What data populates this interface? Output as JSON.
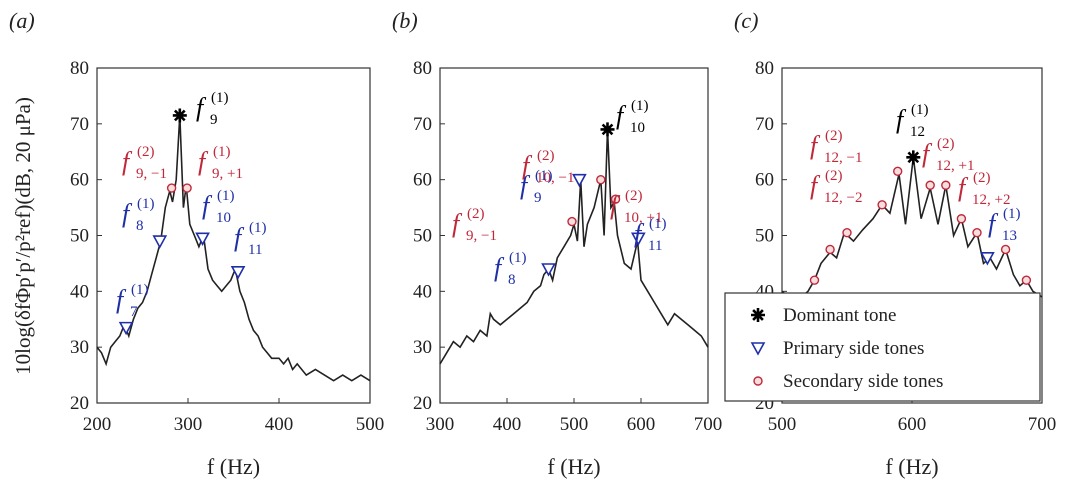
{
  "y_label": "10log(δfΦp′p′/p²ref)(dB, 20 μPa)",
  "chart_data": [
    {
      "type": "line",
      "panel": "(a)",
      "xlabel": "f (Hz)",
      "xlim": [
        200,
        500
      ],
      "xticks": [
        200,
        300,
        400,
        500
      ],
      "ylim": [
        20,
        80
      ],
      "yticks": [
        20,
        30,
        40,
        50,
        60,
        70,
        80
      ],
      "spectrum": {
        "color": "#222222",
        "x": [
          200,
          205,
          210,
          215,
          220,
          225,
          230,
          235,
          240,
          245,
          250,
          255,
          260,
          265,
          270,
          275,
          280,
          283,
          287,
          291,
          295,
          298,
          302,
          307,
          312,
          317,
          322,
          327,
          332,
          337,
          342,
          347,
          352,
          357,
          362,
          367,
          372,
          377,
          382,
          387,
          392,
          400,
          405,
          410,
          415,
          420,
          430,
          440,
          450,
          460,
          470,
          480,
          490,
          500
        ],
        "y": [
          30,
          29,
          27,
          30,
          31,
          32,
          34,
          32,
          35,
          37,
          38,
          40,
          43,
          46,
          49,
          55,
          58,
          56,
          60,
          71.5,
          55,
          59,
          52,
          50,
          48,
          50,
          44,
          42,
          41,
          40,
          41,
          42,
          44,
          40,
          38,
          35,
          33,
          32,
          30,
          29,
          28,
          28,
          27,
          28,
          26,
          27,
          25,
          26,
          25,
          24,
          25,
          24,
          25,
          24
        ]
      },
      "markers": [
        {
          "marker": "star",
          "color": "#000000",
          "x": [
            291
          ],
          "y": [
            71.5
          ]
        },
        {
          "marker": "triangle",
          "color": "#1f2fa8",
          "x": [
            232,
            269,
            316,
            355
          ],
          "y": [
            33.5,
            49,
            49.5,
            43.5
          ]
        },
        {
          "marker": "circle",
          "color": "#c0283a",
          "x": [
            282,
            299
          ],
          "y": [
            58.5,
            58.5
          ]
        }
      ],
      "annotations": [
        {
          "symbol": "f",
          "sup": "(1)",
          "sub": "9",
          "color": "#000000"
        },
        {
          "symbol": "f",
          "sup": "(2)",
          "sub": "9, −1",
          "color": "#c0283a"
        },
        {
          "symbol": "f",
          "sup": "(1)",
          "sub": "9, +1",
          "color": "#c0283a"
        },
        {
          "symbol": "f",
          "sup": "(1)",
          "sub": "8",
          "color": "#1f2fa8"
        },
        {
          "symbol": "f",
          "sup": "(1)",
          "sub": "10",
          "color": "#1f2fa8"
        },
        {
          "symbol": "f",
          "sup": "(1)",
          "sub": "11",
          "color": "#1f2fa8"
        },
        {
          "symbol": "f",
          "sup": "(1)",
          "sub": "7",
          "color": "#1f2fa8"
        }
      ]
    },
    {
      "type": "line",
      "panel": "(b)",
      "xlabel": "f (Hz)",
      "xlim": [
        300,
        700
      ],
      "xticks": [
        300,
        400,
        500,
        600,
        700
      ],
      "ylim": [
        20,
        80
      ],
      "yticks": [
        20,
        30,
        40,
        50,
        60,
        70,
        80
      ],
      "spectrum": {
        "color": "#222222",
        "x": [
          300,
          310,
          320,
          330,
          340,
          350,
          360,
          370,
          375,
          380,
          390,
          400,
          410,
          420,
          430,
          440,
          450,
          455,
          462,
          468,
          475,
          485,
          495,
          500,
          505,
          510,
          515,
          520,
          530,
          540,
          545,
          550,
          555,
          560,
          565,
          575,
          585,
          595,
          600,
          610,
          620,
          630,
          640,
          650,
          660,
          670,
          680,
          690,
          700
        ],
        "y": [
          27,
          29,
          31,
          30,
          32,
          31,
          33,
          32,
          36,
          35,
          34,
          35,
          36,
          37,
          38,
          40,
          41,
          43,
          44,
          42,
          46,
          48,
          50,
          52,
          49,
          60,
          48,
          52,
          55,
          60,
          50,
          69,
          55,
          56,
          50,
          45,
          44,
          49,
          42,
          40,
          38,
          36,
          34,
          36,
          35,
          34,
          33,
          32,
          30
        ]
      },
      "markers": [
        {
          "marker": "star",
          "color": "#000000",
          "x": [
            550
          ],
          "y": [
            69
          ]
        },
        {
          "marker": "triangle",
          "color": "#1f2fa8",
          "x": [
            462,
            508,
            596
          ],
          "y": [
            44,
            60,
            49.5
          ]
        },
        {
          "marker": "circle",
          "color": "#c0283a",
          "x": [
            497,
            540,
            562
          ],
          "y": [
            52.5,
            60,
            56.5
          ]
        }
      ],
      "annotations": [
        {
          "symbol": "f",
          "sup": "(1)",
          "sub": "10",
          "color": "#000000"
        },
        {
          "symbol": "f",
          "sup": "(2)",
          "sub": "10, −1",
          "color": "#c0283a"
        },
        {
          "symbol": "f",
          "sup": "(1)",
          "sub": "9",
          "color": "#1f2fa8"
        },
        {
          "symbol": "f",
          "sup": "(2)",
          "sub": "10, +1",
          "color": "#c0283a"
        },
        {
          "symbol": "f",
          "sup": "(2)",
          "sub": "9, −1",
          "color": "#c0283a"
        },
        {
          "symbol": "f",
          "sup": "(1)",
          "sub": "11",
          "color": "#1f2fa8"
        },
        {
          "symbol": "f",
          "sup": "(1)",
          "sub": "8",
          "color": "#1f2fa8"
        }
      ]
    },
    {
      "type": "line",
      "panel": "(c)",
      "xlabel": "f (Hz)",
      "xlim": [
        500,
        700
      ],
      "xticks": [
        500,
        600,
        700
      ],
      "ylim": [
        20,
        80
      ],
      "yticks": [
        20,
        30,
        40,
        50,
        60,
        70,
        80
      ],
      "spectrum": {
        "color": "#222222",
        "x": [
          500,
          505,
          510,
          515,
          520,
          525,
          530,
          537,
          542,
          548,
          555,
          562,
          570,
          577,
          583,
          590,
          595,
          601,
          607,
          614,
          620,
          626,
          632,
          638,
          643,
          650,
          655,
          660,
          665,
          672,
          678,
          683,
          688,
          693,
          700
        ],
        "y": [
          40,
          39,
          38,
          39,
          40,
          42,
          45,
          47,
          46,
          50.5,
          49,
          51,
          53,
          55.5,
          54,
          61,
          52,
          64,
          53,
          58.5,
          52,
          59,
          50,
          53,
          48,
          50.5,
          45,
          46,
          44,
          47.5,
          43,
          41,
          42,
          40,
          39
        ]
      },
      "markers": [
        {
          "name": "Dominant tone",
          "marker": "star",
          "color": "#000000",
          "x": [
            601
          ],
          "y": [
            64
          ]
        },
        {
          "name": "Primary side tones",
          "marker": "triangle",
          "color": "#1f2fa8",
          "x": [
            658
          ],
          "y": [
            46
          ]
        },
        {
          "name": "Secondary side tones",
          "marker": "circle",
          "color": "#c0283a",
          "x": [
            525,
            537,
            550,
            577,
            589,
            614,
            626,
            638,
            650,
            672,
            688
          ],
          "y": [
            42,
            47.5,
            50.5,
            55.5,
            61.5,
            59,
            59,
            53,
            50.5,
            47.5,
            42
          ]
        }
      ],
      "annotations": [
        {
          "symbol": "f",
          "sup": "(1)",
          "sub": "12",
          "color": "#000000"
        },
        {
          "symbol": "f",
          "sup": "(2)",
          "sub": "12, −1",
          "color": "#c0283a"
        },
        {
          "symbol": "f",
          "sup": "(2)",
          "sub": "12, +1",
          "color": "#c0283a"
        },
        {
          "symbol": "f",
          "sup": "(2)",
          "sub": "12, −2",
          "color": "#c0283a"
        },
        {
          "symbol": "f",
          "sup": "(2)",
          "sub": "12, +2",
          "color": "#c0283a"
        },
        {
          "symbol": "f",
          "sup": "(1)",
          "sub": "13",
          "color": "#1f2fa8"
        }
      ]
    }
  ]
}
